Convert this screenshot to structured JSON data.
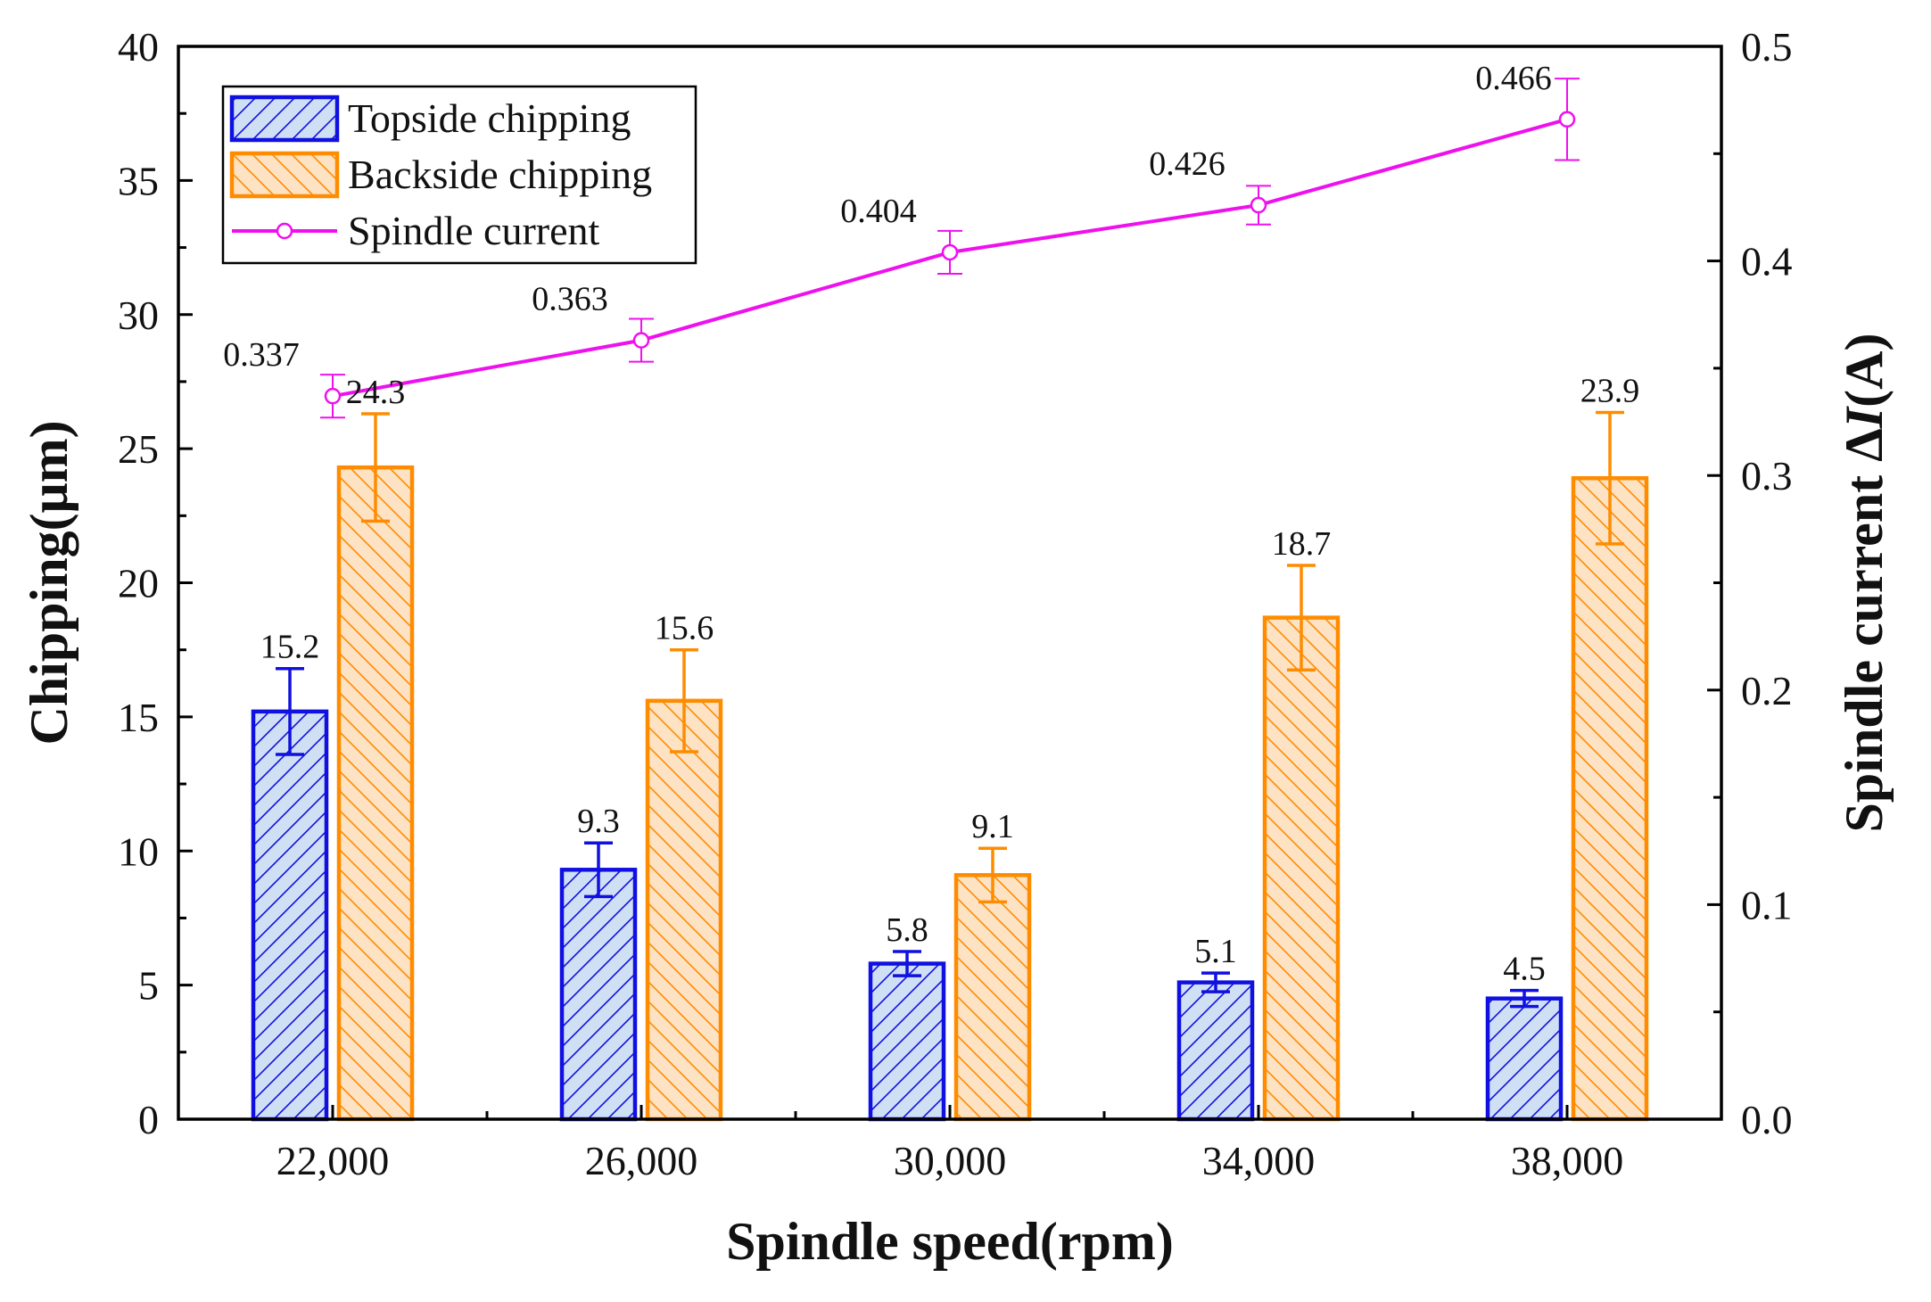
{
  "chart_data": {
    "type": "bar",
    "title": "",
    "categories": [
      "22,000",
      "26,000",
      "30,000",
      "34,000",
      "38,000"
    ],
    "xlabel": "Spindle speed(rpm)",
    "ylabel": "Chipping(μm)",
    "ylabel_right_prefix": "Spindle current Δ",
    "ylabel_right_italic": "I",
    "ylabel_right_suffix": "(A)",
    "ylim": [
      0,
      40
    ],
    "ylim_right": [
      0,
      0.5
    ],
    "yticks": [
      "0",
      "5",
      "10",
      "15",
      "20",
      "25",
      "30",
      "35",
      "40"
    ],
    "yticks_right": [
      "0.0",
      "0.1",
      "0.2",
      "0.3",
      "0.4",
      "0.5"
    ],
    "grid": false,
    "legend_position": "top-left",
    "series": [
      {
        "name": "Topside chipping",
        "kind": "bar",
        "axis": "left",
        "color": "#1010e0",
        "fill": "#cfe0f5",
        "hatch": "forward",
        "values": [
          15.2,
          9.3,
          5.8,
          5.1,
          4.5
        ],
        "labels": [
          "15.2",
          "9.3",
          "5.8",
          "5.1",
          "4.5"
        ],
        "errors": [
          1.6,
          1.0,
          0.45,
          0.35,
          0.3
        ]
      },
      {
        "name": "Backside chipping",
        "kind": "bar",
        "axis": "left",
        "color": "#ff8c00",
        "fill": "#fde2c4",
        "hatch": "backward",
        "values": [
          24.3,
          15.6,
          9.1,
          18.7,
          23.9
        ],
        "labels": [
          "24.3",
          "15.6",
          "9.1",
          "18.7",
          "23.9"
        ],
        "errors": [
          2.0,
          1.9,
          1.0,
          1.95,
          2.45
        ]
      },
      {
        "name": "Spindle current",
        "kind": "line",
        "axis": "right",
        "color": "#ee11ee",
        "values": [
          0.337,
          0.363,
          0.404,
          0.426,
          0.466
        ],
        "labels": [
          "0.337",
          "0.363",
          "0.404",
          "0.426",
          "0.466"
        ],
        "errors": [
          0.01,
          0.01,
          0.01,
          0.009,
          0.019
        ]
      }
    ]
  }
}
